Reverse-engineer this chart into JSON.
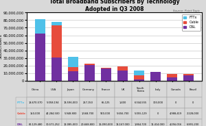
{
  "title": "Total Broadband Subscribers by Technology\nAdopted in Q3 2008",
  "source": "Source: Point Topic",
  "countries": [
    "China",
    "USA",
    "Japan",
    "Germany",
    "France",
    "UK",
    "South\nKorea",
    "Italy",
    "Canada",
    "Brazil"
  ],
  "countries_table": [
    "China",
    "USA",
    "Japan",
    "Germany",
    "France",
    "UK",
    "South\nKorea",
    "Italy",
    "Canada",
    "Brazil"
  ],
  "fttx": [
    18670570,
    5058194,
    13596000,
    257150,
    65125,
    1400,
    6344555,
    303000,
    0,
    0
  ],
  "cable": [
    150000,
    42284500,
    5948800,
    1568700,
    920000,
    5656700,
    5055129,
    0,
    4988419,
    2228000
  ],
  "dsl": [
    62129480,
    30571252,
    12085000,
    20668800,
    16090000,
    13167000,
    1864720,
    11414000,
    4256016,
    6891200
  ],
  "fttx_color": "#4fc1e9",
  "cable_color": "#e74c3c",
  "dsl_color": "#7030a0",
  "ylim": [
    0,
    90000000
  ],
  "yticks": [
    0,
    10000000,
    20000000,
    30000000,
    40000000,
    50000000,
    60000000,
    70000000,
    80000000,
    90000000
  ],
  "ylabel": "Subscribers",
  "bg_color": "#d9d9d9",
  "plot_bg": "#ffffff",
  "table_row_labels": [
    "FTTx",
    "Cable",
    "DSL"
  ],
  "table_row_colors": [
    "#4fc1e9",
    "#e74c3c",
    "#7030a0"
  ]
}
